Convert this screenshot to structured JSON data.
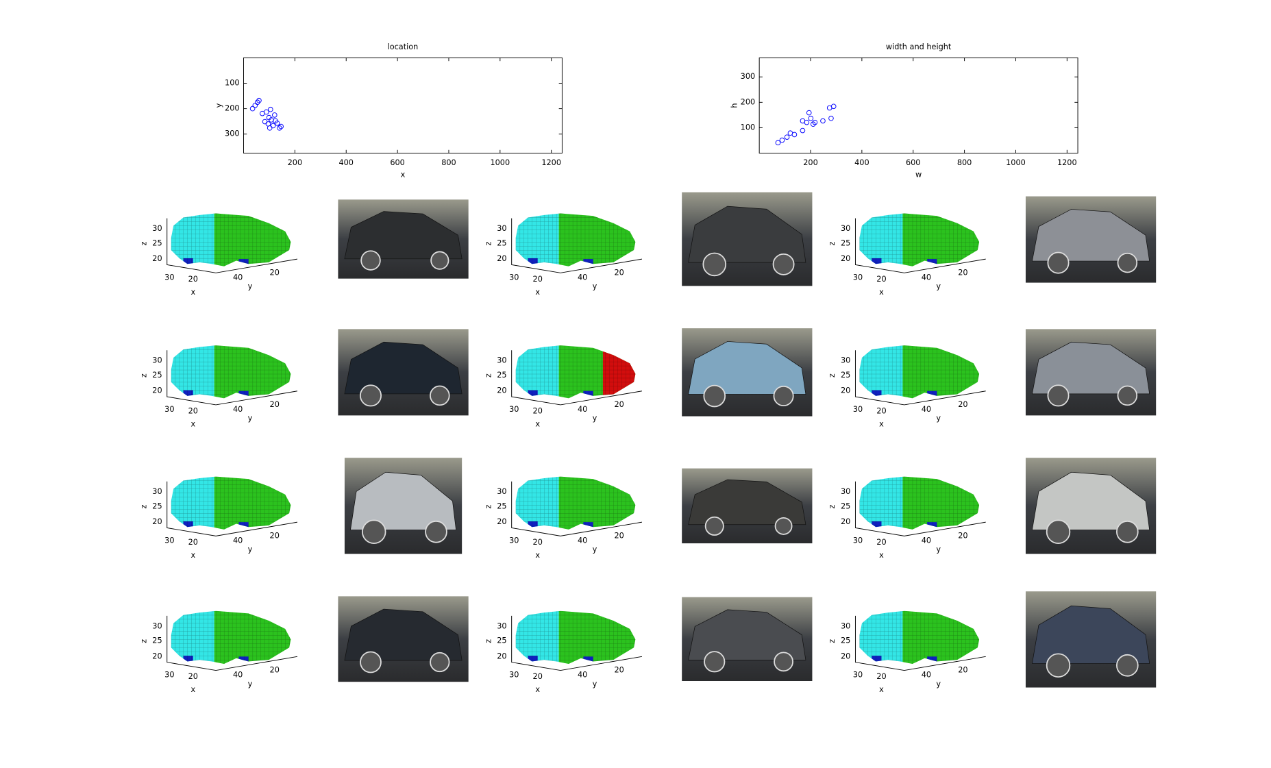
{
  "chart_data": [
    {
      "type": "scatter",
      "title": "location",
      "xlabel": "x",
      "ylabel": "y",
      "x": [
        54,
        45,
        35,
        60,
        73,
        89,
        99,
        83,
        108,
        121,
        105,
        131,
        140,
        146,
        96,
        115,
        102,
        124
      ],
      "y": [
        175,
        187,
        200,
        168,
        219,
        213,
        235,
        251,
        244,
        225,
        203,
        257,
        276,
        270,
        260,
        267,
        276,
        248
      ],
      "color": "#0000ff",
      "xlim": [
        0,
        1242
      ],
      "ylim": [
        0,
        375
      ],
      "y_reversed": true,
      "xticks": [
        200,
        400,
        600,
        800,
        1000,
        1200
      ],
      "yticks": [
        100,
        200,
        300
      ]
    },
    {
      "type": "scatter",
      "title": "width and height",
      "xlabel": "w",
      "ylabel": "h",
      "x": [
        73,
        89,
        108,
        137,
        169,
        185,
        201,
        194,
        217,
        248,
        280,
        274,
        290,
        169,
        210,
        121
      ],
      "y": [
        41,
        51,
        63,
        73,
        89,
        121,
        137,
        159,
        121,
        127,
        137,
        178,
        184,
        127,
        114,
        79
      ],
      "color": "#0000ff",
      "xlim": [
        0,
        1242
      ],
      "ylim": [
        0,
        375
      ],
      "y_reversed": false,
      "xticks": [
        200,
        400,
        600,
        800,
        1000,
        1200
      ],
      "yticks": [
        100,
        200,
        300
      ]
    }
  ],
  "voxel_axes": {
    "xlabel": "x",
    "ylabel": "y",
    "zlabel": "z",
    "zticks": [
      30,
      25,
      20
    ],
    "xticks": [
      30,
      20
    ],
    "yticks": [
      40,
      20
    ]
  }
}
